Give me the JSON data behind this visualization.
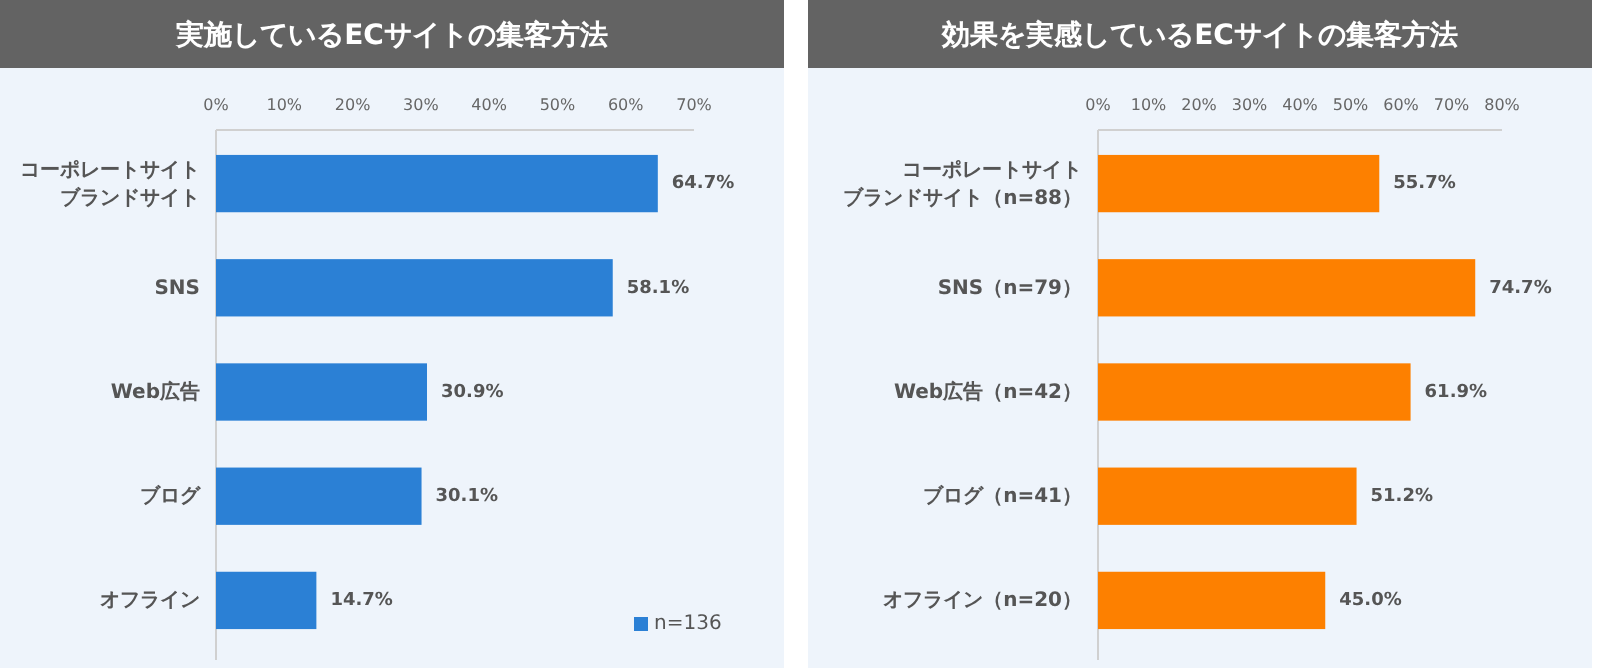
{
  "chart_data": [
    {
      "type": "bar",
      "orientation": "horizontal",
      "title": "実施しているECサイトの集客方法",
      "categories": [
        "コーポレートサイトブランドサイト",
        "SNS",
        "Web広告",
        "ブログ",
        "オフライン"
      ],
      "series": [
        {
          "name": "n=136",
          "color": "#2b80d5",
          "values": [
            64.7,
            58.1,
            30.9,
            30.1,
            14.7
          ],
          "value_labels": [
            "64.7%",
            "58.1%",
            "30.9%",
            "30.1%",
            "14.7%"
          ]
        }
      ],
      "xlim": [
        0,
        70
      ],
      "xticks": [
        {
          "value": 0,
          "label": "0%"
        },
        {
          "value": 10,
          "label": "10%"
        },
        {
          "value": 20,
          "label": "20%"
        },
        {
          "value": 30,
          "label": "30%"
        },
        {
          "value": 40,
          "label": "40%"
        },
        {
          "value": 50,
          "label": "50%"
        },
        {
          "value": 60,
          "label": "60%"
        },
        {
          "value": 70,
          "label": "70%"
        }
      ],
      "legend": "bottom right",
      "grid": false
    },
    {
      "type": "bar",
      "orientation": "horizontal",
      "title": "効果を実感しているECサイトの集客方法",
      "categories": [
        "コーポレートサイトブランドサイト（n=88）",
        "SNS（n=79）",
        "Web広告（n=42）",
        "ブログ（n=41）",
        "オフライン（n=20）"
      ],
      "series": [
        {
          "color": "#fd8000",
          "values": [
            55.7,
            74.7,
            61.9,
            51.2,
            45.0
          ],
          "value_labels": [
            "55.7%",
            "74.7%",
            "61.9%",
            "51.2%",
            "45.0%"
          ]
        }
      ],
      "xlim": [
        0,
        80
      ],
      "xticks": [
        {
          "value": 0,
          "label": "0%"
        },
        {
          "value": 10,
          "label": "10%"
        },
        {
          "value": 20,
          "label": "20%"
        },
        {
          "value": 30,
          "label": "30%"
        },
        {
          "value": 40,
          "label": "40%"
        },
        {
          "value": 50,
          "label": "50%"
        },
        {
          "value": 60,
          "label": "60%"
        },
        {
          "value": 70,
          "label": "70%"
        },
        {
          "value": 80,
          "label": "80%"
        }
      ],
      "legend": false,
      "grid": false
    }
  ]
}
